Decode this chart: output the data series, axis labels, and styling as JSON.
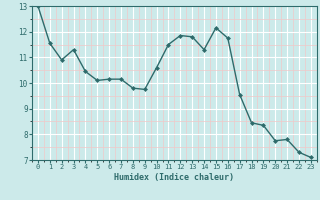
{
  "x": [
    0,
    1,
    2,
    3,
    4,
    5,
    6,
    7,
    8,
    9,
    10,
    11,
    12,
    13,
    14,
    15,
    16,
    17,
    18,
    19,
    20,
    21,
    22,
    23
  ],
  "y": [
    13.0,
    11.55,
    10.9,
    11.3,
    10.45,
    10.1,
    10.15,
    10.15,
    9.8,
    9.75,
    10.6,
    11.5,
    11.85,
    11.8,
    11.3,
    12.15,
    11.75,
    9.55,
    8.45,
    8.35,
    7.75,
    7.8,
    7.3,
    7.1
  ],
  "xlim": [
    -0.5,
    23.5
  ],
  "ylim": [
    7,
    13
  ],
  "xticks": [
    0,
    1,
    2,
    3,
    4,
    5,
    6,
    7,
    8,
    9,
    10,
    11,
    12,
    13,
    14,
    15,
    16,
    17,
    18,
    19,
    20,
    21,
    22,
    23
  ],
  "yticks": [
    7,
    8,
    9,
    10,
    11,
    12,
    13
  ],
  "xlabel": "Humidex (Indice chaleur)",
  "line_color": "#2e6b6b",
  "marker_color": "#2e6b6b",
  "bg_color": "#cceaea",
  "grid_major_color": "#ffffff",
  "grid_minor_color": "#f0c8c8",
  "tick_label_color": "#2e6b6b",
  "xlabel_color": "#2e6b6b"
}
